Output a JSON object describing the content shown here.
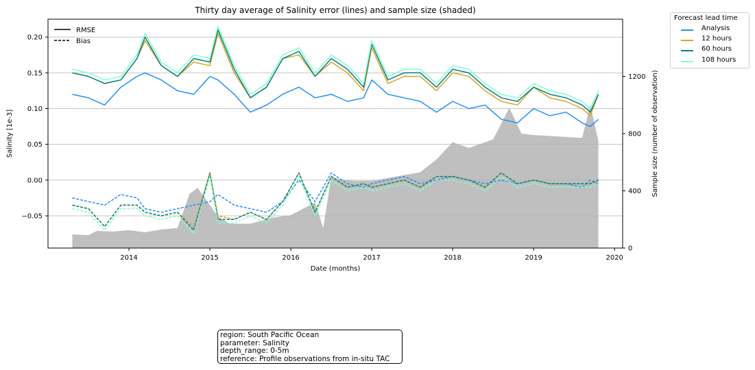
{
  "chart_data": {
    "type": "line",
    "title": "Thirty day average of Salinity error (lines) and sample size (shaded)",
    "xlabel": "Date (months)",
    "ylabel": "Salinity [1e-3]",
    "y2label": "Sample size (number of observation)",
    "xlim": [
      2013.0,
      2020.1
    ],
    "ylim": [
      -0.095,
      0.225
    ],
    "y2lim": [
      0,
      1600
    ],
    "x_ticks": [
      "2014",
      "2015",
      "2016",
      "2017",
      "2018",
      "2019",
      "2020"
    ],
    "x_tick_values": [
      2014,
      2015,
      2016,
      2017,
      2018,
      2019,
      2020
    ],
    "y_ticks": [
      "−0.05",
      "0.00",
      "0.05",
      "0.10",
      "0.15",
      "0.20"
    ],
    "y_tick_values": [
      -0.05,
      0.0,
      0.05,
      0.1,
      0.15,
      0.2
    ],
    "y2_ticks": [
      "0",
      "400",
      "800",
      "1200"
    ],
    "y2_tick_values": [
      0,
      400,
      800,
      1200
    ],
    "grid": "horizontal",
    "style_legend": {
      "placement": "top-left",
      "entries": [
        {
          "label": "RMSE",
          "style": "solid"
        },
        {
          "label": "Bias",
          "style": "dashed"
        }
      ]
    },
    "legend": {
      "title": "Forecast lead time",
      "placement": "outside-right"
    },
    "x": [
      2013.3,
      2013.5,
      2013.7,
      2013.9,
      2014.1,
      2014.2,
      2014.4,
      2014.6,
      2014.8,
      2015.0,
      2015.1,
      2015.3,
      2015.5,
      2015.7,
      2015.9,
      2016.1,
      2016.3,
      2016.5,
      2016.7,
      2016.9,
      2017.0,
      2017.2,
      2017.4,
      2017.6,
      2017.8,
      2018.0,
      2018.2,
      2018.4,
      2018.6,
      2018.8,
      2019.0,
      2019.2,
      2019.4,
      2019.6,
      2019.7,
      2019.8
    ],
    "series": [
      {
        "name": "Analysis",
        "color": "#1e90ff",
        "rmse": [
          0.12,
          0.115,
          0.105,
          0.13,
          0.145,
          0.15,
          0.14,
          0.125,
          0.12,
          0.145,
          0.14,
          0.12,
          0.095,
          0.105,
          0.12,
          0.13,
          0.115,
          0.12,
          0.11,
          0.115,
          0.14,
          0.12,
          0.115,
          0.11,
          0.095,
          0.11,
          0.1,
          0.105,
          0.085,
          0.08,
          0.1,
          0.09,
          0.095,
          0.08,
          0.075,
          0.085
        ],
        "bias": [
          -0.025,
          -0.03,
          -0.035,
          -0.02,
          -0.025,
          -0.04,
          -0.045,
          -0.04,
          -0.035,
          -0.03,
          -0.02,
          -0.035,
          -0.04,
          -0.045,
          -0.03,
          0.0,
          -0.03,
          0.01,
          -0.005,
          -0.01,
          -0.005,
          0.0,
          0.005,
          -0.005,
          0.0,
          0.005,
          0.0,
          -0.005,
          0.0,
          -0.005,
          0.0,
          -0.005,
          -0.005,
          -0.01,
          0.0,
          -0.005
        ]
      },
      {
        "name": "12 hours",
        "color": "#daa520",
        "rmse": [
          0.15,
          0.145,
          0.135,
          0.14,
          0.17,
          0.195,
          0.16,
          0.145,
          0.165,
          0.16,
          0.205,
          0.15,
          0.115,
          0.13,
          0.17,
          0.175,
          0.145,
          0.165,
          0.15,
          0.125,
          0.185,
          0.135,
          0.145,
          0.145,
          0.125,
          0.15,
          0.145,
          0.125,
          0.11,
          0.105,
          0.13,
          0.115,
          0.11,
          0.1,
          0.09,
          0.12
        ],
        "bias": [
          -0.035,
          -0.04,
          -0.065,
          -0.035,
          -0.035,
          -0.045,
          -0.05,
          -0.045,
          -0.065,
          0.01,
          -0.05,
          -0.055,
          -0.045,
          -0.055,
          -0.03,
          0.01,
          -0.045,
          0.005,
          -0.01,
          -0.005,
          -0.01,
          -0.005,
          0.0,
          -0.01,
          0.005,
          0.005,
          0.0,
          -0.01,
          0.01,
          -0.005,
          0.0,
          -0.005,
          -0.005,
          -0.005,
          -0.005,
          0.0
        ]
      },
      {
        "name": "60 hours",
        "color": "#008080",
        "rmse": [
          0.15,
          0.145,
          0.135,
          0.14,
          0.17,
          0.2,
          0.16,
          0.145,
          0.17,
          0.165,
          0.21,
          0.155,
          0.115,
          0.13,
          0.17,
          0.18,
          0.145,
          0.17,
          0.155,
          0.13,
          0.19,
          0.14,
          0.15,
          0.15,
          0.13,
          0.155,
          0.15,
          0.13,
          0.115,
          0.11,
          0.13,
          0.12,
          0.115,
          0.105,
          0.095,
          0.12
        ],
        "bias": [
          -0.035,
          -0.04,
          -0.065,
          -0.035,
          -0.035,
          -0.045,
          -0.05,
          -0.045,
          -0.07,
          0.01,
          -0.055,
          -0.055,
          -0.045,
          -0.055,
          -0.03,
          0.01,
          -0.045,
          0.005,
          -0.01,
          -0.005,
          -0.01,
          -0.005,
          0.0,
          -0.01,
          0.005,
          0.005,
          0.0,
          -0.01,
          0.01,
          -0.005,
          0.0,
          -0.005,
          -0.005,
          -0.005,
          -0.005,
          0.0
        ]
      },
      {
        "name": "108 hours",
        "color": "#7fffd4",
        "rmse": [
          0.155,
          0.15,
          0.14,
          0.145,
          0.175,
          0.205,
          0.165,
          0.15,
          0.175,
          0.17,
          0.215,
          0.16,
          0.12,
          0.135,
          0.175,
          0.185,
          0.15,
          0.175,
          0.16,
          0.135,
          0.195,
          0.145,
          0.155,
          0.155,
          0.135,
          0.16,
          0.155,
          0.135,
          0.12,
          0.115,
          0.135,
          0.125,
          0.12,
          0.11,
          0.1,
          0.125
        ],
        "bias": [
          -0.04,
          -0.045,
          -0.07,
          -0.04,
          -0.04,
          -0.05,
          -0.055,
          -0.05,
          -0.075,
          0.005,
          -0.06,
          -0.06,
          -0.05,
          -0.06,
          -0.035,
          0.005,
          -0.05,
          0.0,
          -0.015,
          -0.01,
          -0.015,
          -0.01,
          -0.005,
          -0.015,
          0.0,
          0.0,
          -0.005,
          -0.015,
          0.005,
          -0.01,
          -0.005,
          -0.01,
          -0.01,
          -0.01,
          -0.01,
          -0.005
        ]
      }
    ],
    "sample_size": {
      "color": "#bfbfbf",
      "x": [
        2013.3,
        2013.5,
        2013.6,
        2013.8,
        2014.0,
        2014.2,
        2014.4,
        2014.6,
        2014.75,
        2014.85,
        2015.0,
        2015.1,
        2015.25,
        2015.5,
        2015.75,
        2016.0,
        2016.3,
        2016.4,
        2016.5,
        2016.6,
        2016.8,
        2017.0,
        2017.3,
        2017.6,
        2017.8,
        2018.0,
        2018.2,
        2018.5,
        2018.7,
        2018.85,
        2019.0,
        2019.3,
        2019.6,
        2019.7,
        2019.8
      ],
      "values": [
        95,
        90,
        120,
        115,
        125,
        110,
        130,
        140,
        380,
        420,
        300,
        220,
        170,
        170,
        210,
        230,
        320,
        140,
        500,
        480,
        470,
        470,
        500,
        530,
        620,
        740,
        700,
        760,
        980,
        800,
        790,
        780,
        770,
        1000,
        750
      ]
    }
  },
  "info_box": {
    "lines": [
      "region: South Pacific Ocean",
      "parameter: Salinity",
      "depth_range: 0-5m",
      "reference: Profile observations from in-situ TAC"
    ]
  }
}
